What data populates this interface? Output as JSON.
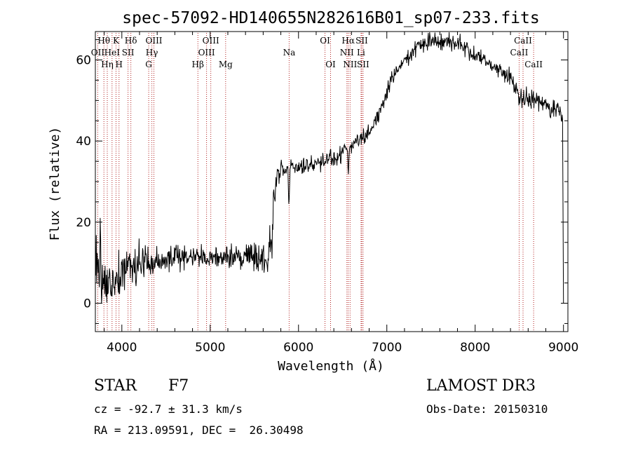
{
  "chart_data": {
    "type": "line",
    "title": "spec-57092-HD140655N282616B01_sp07-233.fits",
    "xlabel": "Wavelength (Å)",
    "ylabel": "Flux (relative)",
    "xlim": [
      3700,
      9050
    ],
    "ylim": [
      -7,
      67
    ],
    "xticks": [
      4000,
      5000,
      6000,
      7000,
      8000,
      9000
    ],
    "yticks": [
      0,
      20,
      40,
      60
    ],
    "xtick_labels": [
      "4000",
      "5000",
      "6000",
      "7000",
      "8000",
      "9000"
    ],
    "ytick_labels": [
      "0",
      "20",
      "40",
      "60"
    ],
    "line_color": "#000000",
    "marker_color": "#b22222",
    "spectral_lines": [
      {
        "label": "OII",
        "wavelength": 3727,
        "row": 2
      },
      {
        "label": "Hθ",
        "wavelength": 3797,
        "row": 1
      },
      {
        "label": "Hη",
        "wavelength": 3835,
        "row": 3
      },
      {
        "label": "HeI",
        "wavelength": 3889,
        "row": 2
      },
      {
        "label": "K",
        "wavelength": 3934,
        "row": 1
      },
      {
        "label": "H",
        "wavelength": 3968,
        "row": 3
      },
      {
        "label": "SII",
        "wavelength": 4070,
        "row": 2
      },
      {
        "label": "Hδ",
        "wavelength": 4102,
        "row": 1
      },
      {
        "label": "G",
        "wavelength": 4304,
        "row": 3
      },
      {
        "label": "Hγ",
        "wavelength": 4340,
        "row": 2
      },
      {
        "label": "OIII",
        "wavelength": 4363,
        "row": 1
      },
      {
        "label": "Hβ",
        "wavelength": 4861,
        "row": 3
      },
      {
        "label": "OIII",
        "wavelength": 4959,
        "row": 2
      },
      {
        "label": "OIII",
        "wavelength": 5007,
        "row": 1
      },
      {
        "label": "Mg",
        "wavelength": 5175,
        "row": 3
      },
      {
        "label": "Na",
        "wavelength": 5894,
        "row": 2
      },
      {
        "label": "OI",
        "wavelength": 6300,
        "row": 1
      },
      {
        "label": "OI",
        "wavelength": 6363,
        "row": 3
      },
      {
        "label": "NII",
        "wavelength": 6548,
        "row": 2
      },
      {
        "label": "Hα",
        "wavelength": 6563,
        "row": 1
      },
      {
        "label": "NII",
        "wavelength": 6584,
        "row": 3
      },
      {
        "label": "Li",
        "wavelength": 6708,
        "row": 2
      },
      {
        "label": "SII",
        "wavelength": 6716,
        "row": 1
      },
      {
        "label": "SII",
        "wavelength": 6731,
        "row": 3
      },
      {
        "label": "CaII",
        "wavelength": 8498,
        "row": 2
      },
      {
        "label": "CaII",
        "wavelength": 8542,
        "row": 1
      },
      {
        "label": "CaII",
        "wavelength": 8662,
        "row": 3
      }
    ],
    "continuum": [
      [
        3700,
        7
      ],
      [
        3800,
        4
      ],
      [
        3900,
        6
      ],
      [
        4000,
        8
      ],
      [
        4050,
        9
      ],
      [
        4150,
        9.5
      ],
      [
        4300,
        10
      ],
      [
        4500,
        11
      ],
      [
        4700,
        11.5
      ],
      [
        4900,
        11.5
      ],
      [
        5100,
        11.5
      ],
      [
        5300,
        11.5
      ],
      [
        5500,
        11.5
      ],
      [
        5650,
        10
      ],
      [
        5700,
        18
      ],
      [
        5730,
        29
      ],
      [
        5800,
        33
      ],
      [
        5900,
        33
      ],
      [
        6000,
        33.5
      ],
      [
        6200,
        34.5
      ],
      [
        6400,
        36
      ],
      [
        6600,
        38.5
      ],
      [
        6750,
        41
      ],
      [
        6850,
        44
      ],
      [
        6950,
        49
      ],
      [
        7050,
        55
      ],
      [
        7200,
        60
      ],
      [
        7350,
        63
      ],
      [
        7500,
        65
      ],
      [
        7650,
        64.5
      ],
      [
        7800,
        64.5
      ],
      [
        7950,
        62
      ],
      [
        8100,
        60
      ],
      [
        8250,
        57.5
      ],
      [
        8400,
        56
      ],
      [
        8500,
        51
      ],
      [
        8650,
        50
      ],
      [
        8800,
        49
      ],
      [
        8950,
        47
      ],
      [
        8980,
        46
      ]
    ],
    "noise_ranges": [
      [
        3700,
        4000,
        4.0
      ],
      [
        4000,
        4300,
        2.5
      ],
      [
        4300,
        5650,
        1.6
      ],
      [
        5650,
        5750,
        3.0
      ],
      [
        5750,
        6500,
        1.3
      ],
      [
        6500,
        7000,
        1.0
      ],
      [
        7000,
        8500,
        1.0
      ],
      [
        8500,
        9000,
        1.3
      ]
    ],
    "features": [
      {
        "wavelength": 5893,
        "depth": -8
      },
      {
        "wavelength": 6563,
        "depth": -6
      },
      {
        "wavelength": 3760,
        "depth": 11
      },
      {
        "wavelength": 5700,
        "depth": -6
      }
    ],
    "end_drop": {
      "from_wavelength": 8990,
      "to_wavelength": 9000,
      "low": 0
    },
    "seed": 57092
  },
  "info": {
    "object_class": "STAR",
    "subclass": "F7",
    "survey": "LAMOST DR3",
    "redshift": "cz = -92.7 ± 31.3 km/s",
    "obs_date": "Obs-Date: 20150310",
    "coords": "RA = 213.09591, DEC =  26.30498"
  }
}
